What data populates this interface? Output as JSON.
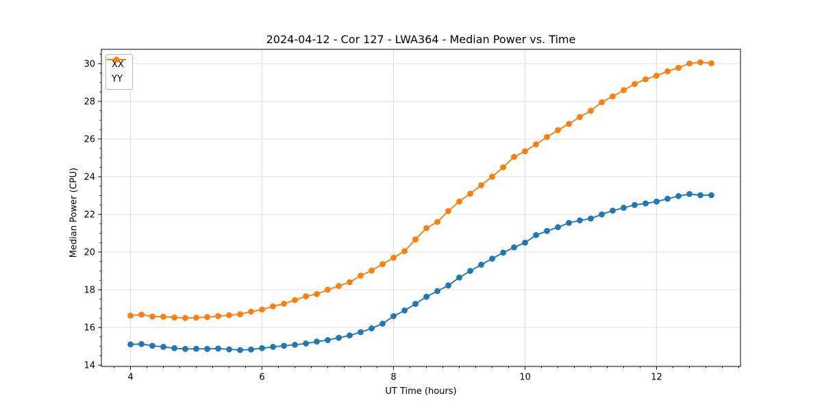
{
  "chart_data": {
    "type": "line",
    "title": "2024-04-12 - Cor 127 - LWA364 - Median Power vs. Time",
    "xlabel": "UT Time (hours)",
    "ylabel": "Median Power (CPU)",
    "xlim": [
      3.557,
      13.276
    ],
    "ylim": [
      13.93,
      30.76
    ],
    "xticks": [
      4,
      6,
      8,
      10,
      12
    ],
    "yticks": [
      14,
      16,
      18,
      20,
      22,
      24,
      26,
      28,
      30
    ],
    "minor_x_step": 0.25,
    "minor_y_step": 0.5,
    "grid": true,
    "grid_color": "#e0e0e0",
    "legend_position": "upper-left",
    "background_color": "#ffffff",
    "x": [
      4.0,
      4.167,
      4.333,
      4.5,
      4.667,
      4.833,
      5.0,
      5.167,
      5.333,
      5.5,
      5.667,
      5.833,
      6.0,
      6.167,
      6.333,
      6.5,
      6.667,
      6.833,
      7.0,
      7.167,
      7.333,
      7.5,
      7.667,
      7.833,
      8.0,
      8.167,
      8.333,
      8.5,
      8.667,
      8.833,
      9.0,
      9.167,
      9.333,
      9.5,
      9.667,
      9.833,
      10.0,
      10.167,
      10.333,
      10.5,
      10.667,
      10.833,
      11.0,
      11.167,
      11.333,
      11.5,
      11.667,
      11.833,
      12.0,
      12.167,
      12.333,
      12.5,
      12.667,
      12.833
    ],
    "series": [
      {
        "name": "XX",
        "color": "#1f77b4",
        "values": [
          15.1,
          15.12,
          15.03,
          14.97,
          14.9,
          14.86,
          14.87,
          14.86,
          14.88,
          14.84,
          14.8,
          14.83,
          14.9,
          14.97,
          15.03,
          15.08,
          15.15,
          15.25,
          15.33,
          15.45,
          15.58,
          15.75,
          15.95,
          16.2,
          16.6,
          16.9,
          17.25,
          17.63,
          17.93,
          18.23,
          18.65,
          19.0,
          19.33,
          19.65,
          19.97,
          20.25,
          20.5,
          20.9,
          21.12,
          21.32,
          21.55,
          21.68,
          21.78,
          22.0,
          22.2,
          22.35,
          22.5,
          22.58,
          22.68,
          22.83,
          22.97,
          23.08,
          23.02,
          23.02
        ]
      },
      {
        "name": "YY",
        "color": "#ff7f0e",
        "values": [
          16.63,
          16.68,
          16.58,
          16.57,
          16.53,
          16.5,
          16.52,
          16.55,
          16.6,
          16.65,
          16.7,
          16.84,
          16.95,
          17.12,
          17.26,
          17.45,
          17.65,
          17.77,
          18.0,
          18.2,
          18.4,
          18.75,
          19.02,
          19.36,
          19.7,
          20.05,
          20.67,
          21.27,
          21.6,
          22.18,
          22.68,
          23.1,
          23.55,
          24.0,
          24.5,
          25.05,
          25.35,
          25.72,
          26.1,
          26.47,
          26.8,
          27.17,
          27.5,
          27.95,
          28.26,
          28.59,
          28.92,
          29.17,
          29.36,
          29.59,
          29.78,
          30.01,
          30.07,
          30.02
        ]
      }
    ]
  }
}
